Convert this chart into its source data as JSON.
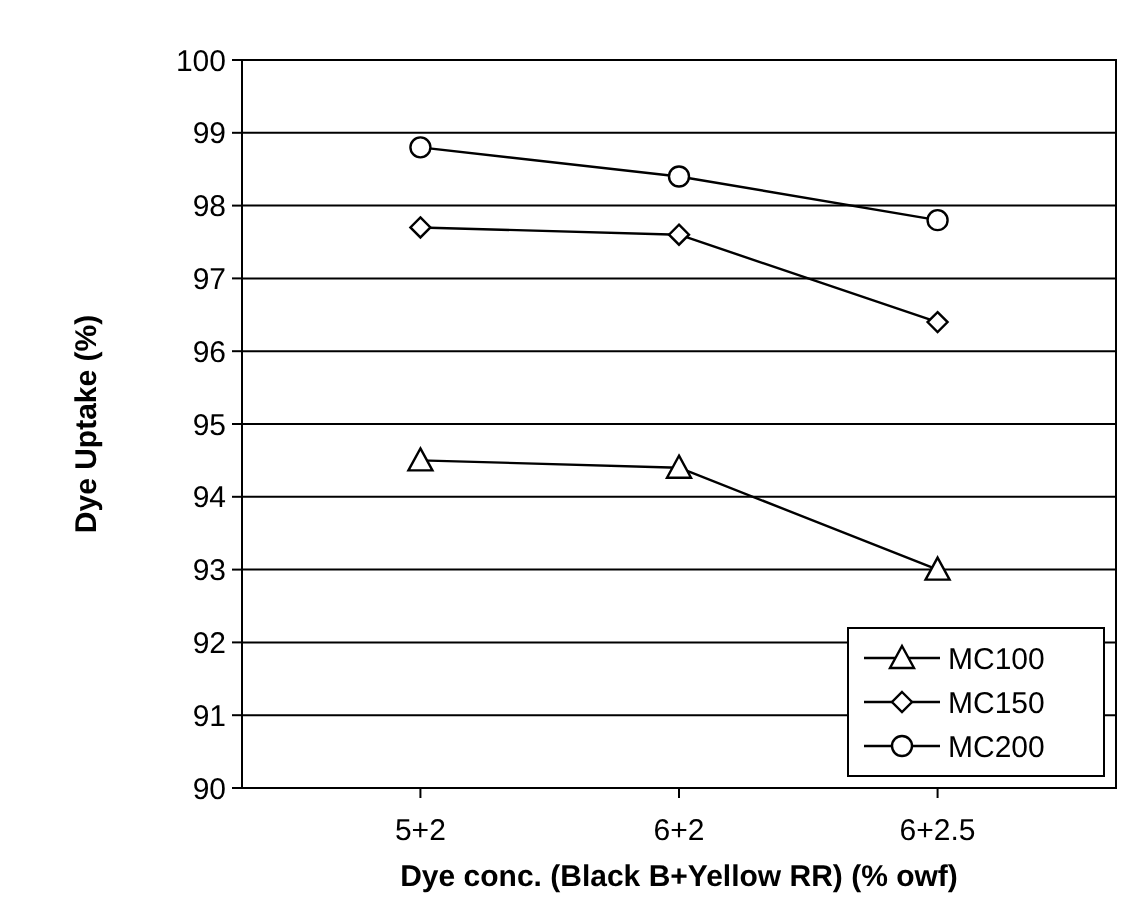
{
  "chart_data": {
    "type": "line",
    "xlabel": "Dye conc. (Black B+Yellow RR) (% owf)",
    "ylabel": "Dye Uptake (%)",
    "categories": [
      "5+2",
      "6+2",
      "6+2.5"
    ],
    "series": [
      {
        "name": "MC100",
        "color": "#000000",
        "marker": "triangle",
        "values": [
          94.5,
          94.4,
          93.0
        ]
      },
      {
        "name": "MC150",
        "color": "#000000",
        "marker": "diamond",
        "values": [
          97.7,
          97.6,
          96.4
        ]
      },
      {
        "name": "MC200",
        "color": "#000000",
        "marker": "circle",
        "values": [
          98.8,
          98.4,
          97.8
        ]
      }
    ],
    "ylim": [
      90,
      100
    ],
    "yticks": [
      90,
      91,
      92,
      93,
      94,
      95,
      96,
      97,
      98,
      99,
      100
    ],
    "grid": "y",
    "legend": "bottom right",
    "line_style": "solid"
  }
}
